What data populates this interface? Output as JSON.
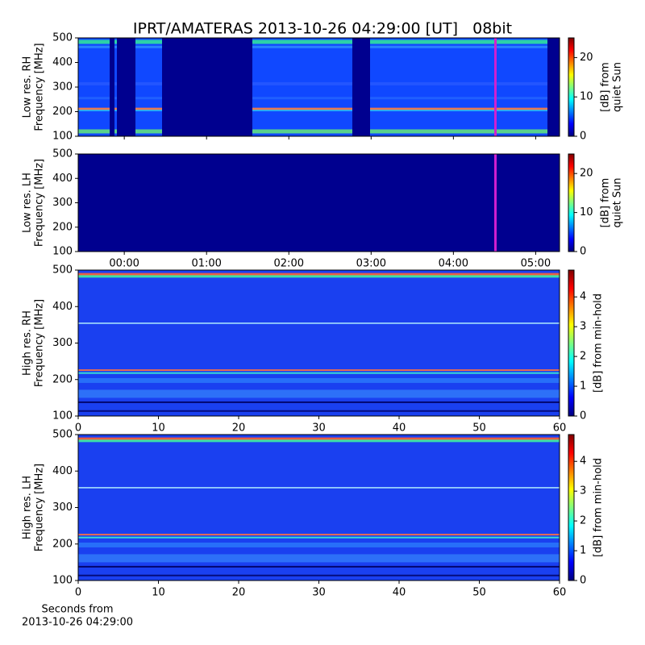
{
  "chart_data": [
    {
      "type": "heatmap",
      "title": "IPRT/AMATERAS 2013-10-26 04:29:00 [UT]   08bit",
      "ylabel": [
        "Low res. RH",
        "Frequency [MHz]"
      ],
      "ylim": [
        100,
        500
      ],
      "yticks": [
        100,
        200,
        300,
        400,
        500
      ],
      "xlim": [
        -0.56,
        5.29
      ],
      "xticks": [
        0,
        1,
        2,
        3,
        4,
        5
      ],
      "cmap": "jet",
      "colorbar": {
        "label": [
          "[dB] from",
          "quiet Sun"
        ],
        "lim": [
          0,
          25
        ],
        "ticks": [
          0,
          10,
          20
        ]
      }
    },
    {
      "type": "heatmap",
      "ylabel": [
        "Low res. LH",
        "Frequency [MHz]"
      ],
      "ylim": [
        100,
        500
      ],
      "yticks": [
        100,
        200,
        300,
        400,
        500
      ],
      "xlim": [
        -0.56,
        5.29
      ],
      "xticks": [
        {
          "value": 0,
          "label": "00:00"
        },
        {
          "value": 1,
          "label": "01:00"
        },
        {
          "value": 2,
          "label": "02:00"
        },
        {
          "value": 3,
          "label": "03:00"
        },
        {
          "value": 4,
          "label": "04:00"
        },
        {
          "value": 5,
          "label": "05:00"
        }
      ],
      "cmap": "jet",
      "colorbar": {
        "label": [
          "[dB] from",
          "quiet Sun"
        ],
        "lim": [
          0,
          25
        ],
        "ticks": [
          0,
          10,
          20
        ]
      }
    },
    {
      "type": "heatmap",
      "ylabel": [
        "High res. RH",
        "Frequency [MHz]"
      ],
      "ylim": [
        100,
        500
      ],
      "yticks": [
        100,
        200,
        300,
        400,
        500
      ],
      "xlim": [
        0,
        60
      ],
      "xticks": [
        0,
        10,
        20,
        30,
        40,
        50,
        60
      ],
      "cmap": "jet",
      "colorbar": {
        "label": [
          "[dB] from min-hold"
        ],
        "lim": [
          0,
          4.9
        ],
        "ticks": [
          0,
          1,
          2,
          3,
          4
        ]
      }
    },
    {
      "type": "heatmap",
      "ylabel": [
        "High res. LH",
        "Frequency [MHz]"
      ],
      "ylim": [
        100,
        500
      ],
      "yticks": [
        100,
        200,
        300,
        400,
        500
      ],
      "xlim": [
        0,
        60
      ],
      "xticks": [
        0,
        10,
        20,
        30,
        40,
        50,
        60
      ],
      "xticklabels": true,
      "xlabel": [
        "Seconds from",
        "2013-10-26 04:29:00"
      ],
      "cmap": "jet",
      "colorbar": {
        "label": [
          "[dB] from min-hold"
        ],
        "lim": [
          0,
          4.9
        ],
        "ticks": [
          0,
          1,
          2,
          3,
          4
        ]
      }
    }
  ]
}
